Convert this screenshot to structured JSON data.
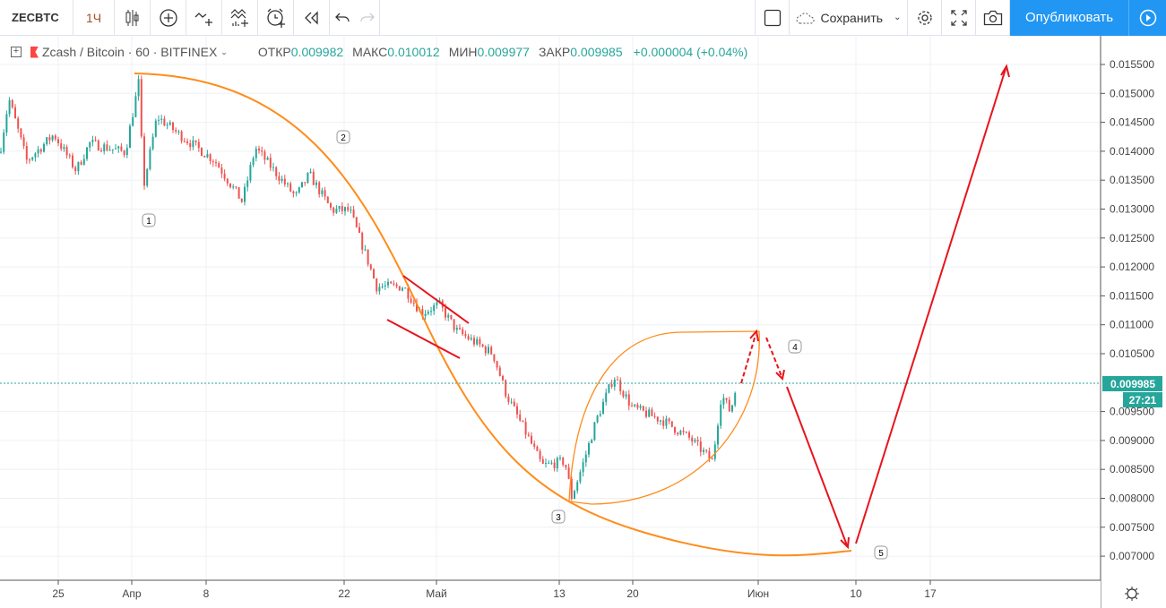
{
  "toolbar": {
    "symbol": "ZECBTC",
    "interval": "1Ч",
    "save_label": "Сохранить",
    "publish_label": "Опубликовать",
    "icons": [
      "candles-icon",
      "indicator-plus-icon",
      "compare-icon",
      "financials-icon",
      "alert-clock-icon",
      "replay-icon",
      "undo-icon",
      "redo-icon",
      "layout-square-icon",
      "cloud-icon",
      "gear-icon",
      "fullscreen-icon",
      "camera-icon",
      "play-icon"
    ]
  },
  "legend": {
    "title": "Zcash / Bitcoin · 60 · BITFINEX",
    "open_label": "ОТКР",
    "open": "0.009982",
    "high_label": "МАКС",
    "high": "0.010012",
    "low_label": "МИН",
    "low": "0.009977",
    "close_label": "ЗАКР",
    "close": "0.009985",
    "change": "+0.000004 (+0.04%)"
  },
  "price_axis": {
    "ticks": [
      "0.015500",
      "0.015000",
      "0.014500",
      "0.014000",
      "0.013500",
      "0.013000",
      "0.012500",
      "0.012000",
      "0.011500",
      "0.011000",
      "0.010500",
      "0.009500",
      "0.009000",
      "0.008500",
      "0.008000",
      "0.007500",
      "0.007000"
    ],
    "last_price": "0.009985",
    "countdown": "27:21"
  },
  "time_axis": {
    "ticks": [
      "25",
      "Апр",
      "8",
      "22",
      "Май",
      "13",
      "20",
      "Июн",
      "10",
      "17"
    ]
  },
  "annotations": {
    "labels": [
      "1",
      "2",
      "3",
      "4",
      "5"
    ]
  },
  "colors": {
    "up": "#26a69a",
    "down": "#ef5350",
    "accent": "#2196f3",
    "drawing_curve": "#ff7f0e",
    "drawing_line": "#f00000"
  },
  "chart_data": {
    "type": "candlestick",
    "series": [
      {
        "name": "Zcash / Bitcoin",
        "points": [
          [
            "2019-03-19T04:00",
            0.01398
          ],
          [
            "2019-03-20T01:00",
            0.01491
          ],
          [
            "2019-03-21T19:00",
            0.01383
          ],
          [
            "2019-03-24T10:00",
            0.01429
          ],
          [
            "2019-03-26T14:00",
            0.01367
          ],
          [
            "2019-03-27T22:00",
            0.01414
          ],
          [
            "2019-03-31T09:00",
            0.01398
          ],
          [
            "2019-04-01T17:00",
            0.01522
          ],
          [
            "2019-04-02T03:00",
            0.01336
          ],
          [
            "2019-04-03T11:00",
            0.0146
          ],
          [
            "2019-04-05T15:00",
            0.01429
          ],
          [
            "2019-04-09T03:00",
            0.01383
          ],
          [
            "2019-04-11T18:00",
            0.01313
          ],
          [
            "2019-04-13T01:00",
            0.01406
          ],
          [
            "2019-04-16T23:00",
            0.01321
          ],
          [
            "2019-04-18T07:00",
            0.0136
          ],
          [
            "2019-04-20T11:00",
            0.01298
          ],
          [
            "2019-04-22T05:00",
            0.01298
          ],
          [
            "2019-04-23T23:00",
            0.01212
          ],
          [
            "2019-04-24T20:00",
            0.01166
          ],
          [
            "2019-04-27T11:00",
            0.01166
          ],
          [
            "2019-04-29T05:00",
            0.0112
          ],
          [
            "2019-04-30T22:00",
            0.01135
          ],
          [
            "2019-05-02T16:00",
            0.01089
          ],
          [
            "2019-05-06T04:00",
            0.0105
          ],
          [
            "2019-05-07T11:00",
            0.0098
          ],
          [
            "2019-05-09T16:00",
            0.00903
          ],
          [
            "2019-05-10T23:00",
            0.00856
          ],
          [
            "2019-05-13T04:00",
            0.00864
          ],
          [
            "2019-05-13T20:00",
            0.00802
          ],
          [
            "2019-05-14T21:00",
            0.00856
          ],
          [
            "2019-05-16T05:00",
            0.00934
          ],
          [
            "2019-05-17T23:00",
            0.01011
          ],
          [
            "2019-05-19T17:00",
            0.00957
          ],
          [
            "2019-05-22T18:00",
            0.00934
          ],
          [
            "2019-05-25T09:00",
            0.00903
          ],
          [
            "2019-05-27T13:00",
            0.00864
          ],
          [
            "2019-05-28T10:00",
            0.0098
          ],
          [
            "2019-05-29T07:00",
            0.00949
          ],
          [
            "2019-05-29T22:00",
            0.00998
          ]
        ]
      }
    ],
    "ylim": [
      0.0068,
      0.016
    ],
    "grid": true
  }
}
